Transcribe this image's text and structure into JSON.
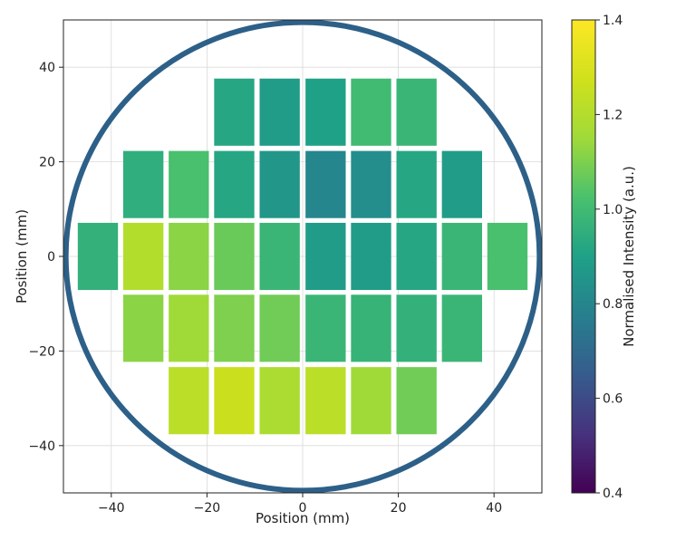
{
  "chart_data": {
    "type": "heatmap",
    "xlabel": "Position (mm)",
    "ylabel": "Position (mm)",
    "xlim": [
      -50,
      50
    ],
    "ylim": [
      -50,
      50
    ],
    "xticks": [
      -40,
      -20,
      0,
      20,
      40
    ],
    "yticks": [
      -40,
      -20,
      0,
      20,
      40
    ],
    "grid": true,
    "colorbar": {
      "label": "Normalised Intensity (a.u.)",
      "colormap": "viridis",
      "range": [
        0.4,
        1.4
      ],
      "ticks": [
        0.4,
        0.6,
        0.8,
        1.0,
        1.2,
        1.4
      ]
    },
    "wafer_outline": {
      "center": [
        0,
        0
      ],
      "radius_mm": 49.5,
      "color": "#2d6088"
    },
    "die_size_mm": [
      8.4,
      14.2
    ],
    "rows": [
      {
        "y_center": 30.5,
        "x_centers": [
          -14.3,
          -4.8,
          4.8,
          14.3,
          23.8
        ],
        "intensity": [
          0.92,
          0.88,
          0.9,
          1.0,
          0.98
        ]
      },
      {
        "y_center": 15.2,
        "x_centers": [
          -33.3,
          -23.8,
          -14.3,
          -4.8,
          4.8,
          14.3,
          23.8,
          33.3
        ],
        "intensity": [
          0.95,
          1.02,
          0.92,
          0.86,
          0.8,
          0.83,
          0.92,
          0.88
        ]
      },
      {
        "y_center": 0.0,
        "x_centers": [
          -42.8,
          -33.3,
          -23.8,
          -14.3,
          -4.8,
          4.8,
          14.3,
          23.8,
          33.3,
          42.8
        ],
        "intensity": [
          0.96,
          1.2,
          1.12,
          1.07,
          0.98,
          0.88,
          0.88,
          0.92,
          0.98,
          1.02
        ]
      },
      {
        "y_center": -15.2,
        "x_centers": [
          -33.3,
          -23.8,
          -14.3,
          -4.8,
          4.8,
          14.3,
          23.8,
          33.3
        ],
        "intensity": [
          1.12,
          1.15,
          1.1,
          1.08,
          0.98,
          0.97,
          0.96,
          0.98
        ]
      },
      {
        "y_center": -30.5,
        "x_centers": [
          -23.8,
          -14.3,
          -4.8,
          4.8,
          14.3,
          23.8
        ],
        "intensity": [
          1.22,
          1.26,
          1.18,
          1.22,
          1.15,
          1.08
        ]
      }
    ]
  }
}
